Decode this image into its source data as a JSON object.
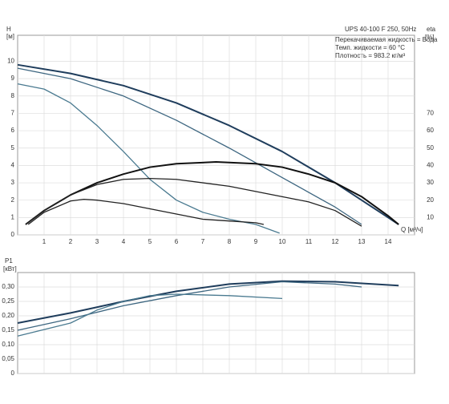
{
  "chart_data": [
    {
      "type": "line",
      "title": "UPS 40-100 F 250, 50Hz",
      "annotations": [
        "Перекачиваемая жидкость = Вода",
        "Темп. жидкости = 60 °C",
        "Плотность = 983.2 кг/м³"
      ],
      "ylabel": "H",
      "yunit": "[м]",
      "y2label": "eta",
      "y2unit": "[%]",
      "xlabel": "Q [м³/ч]",
      "xlim": [
        0,
        15
      ],
      "xticks": [
        1,
        2,
        3,
        4,
        5,
        6,
        7,
        8,
        9,
        10,
        11,
        12,
        13,
        14
      ],
      "ylim": [
        0,
        11.5
      ],
      "yticks": [
        0,
        1,
        2,
        3,
        4,
        5,
        6,
        7,
        8,
        9,
        10
      ],
      "y2lim": [
        0,
        115
      ],
      "y2ticks": [
        10,
        20,
        30,
        40,
        50,
        60,
        70
      ],
      "grid": true,
      "series": [
        {
          "color": "#1f3d5c",
          "width": 2,
          "x": [
            0,
            2,
            4,
            6,
            8,
            10,
            12,
            13,
            14,
            14.4
          ],
          "values": [
            9.8,
            9.3,
            8.6,
            7.6,
            6.3,
            4.8,
            3.0,
            2.0,
            1.0,
            0.6
          ]
        },
        {
          "color": "#3d6680",
          "width": 1.3,
          "x": [
            0,
            2,
            4,
            6,
            8,
            10,
            12,
            13
          ],
          "values": [
            9.6,
            9.0,
            8.0,
            6.6,
            5.0,
            3.3,
            1.6,
            0.6
          ]
        },
        {
          "color": "#4a7a90",
          "width": 1.3,
          "x": [
            0,
            1,
            2,
            3,
            4,
            5,
            6,
            7,
            8,
            9,
            9.9
          ],
          "values": [
            8.7,
            8.4,
            7.6,
            6.3,
            4.8,
            3.2,
            2.0,
            1.3,
            0.9,
            0.6,
            0.1
          ]
        },
        {
          "color": "#111111",
          "width": 2,
          "axis": "y2",
          "x": [
            0.3,
            1,
            2,
            3,
            4,
            5,
            6,
            7.5,
            9,
            10,
            11,
            12,
            13,
            14,
            14.4
          ],
          "values": [
            6,
            14,
            23,
            30,
            35,
            39,
            41,
            42,
            41,
            39,
            35,
            30,
            22,
            11,
            6
          ]
        },
        {
          "color": "#222222",
          "width": 1.3,
          "axis": "y2",
          "x": [
            0.3,
            1,
            2,
            3,
            4,
            5,
            6,
            8,
            10,
            11,
            12,
            13
          ],
          "values": [
            6,
            14,
            23,
            29,
            32,
            32.5,
            32,
            28,
            22,
            19,
            14,
            5
          ]
        },
        {
          "color": "#222222",
          "width": 1.3,
          "axis": "y2",
          "x": [
            0.4,
            1,
            2,
            2.5,
            3,
            4,
            5,
            6,
            7,
            8,
            9,
            9.3
          ],
          "values": [
            6,
            13,
            19.5,
            20.5,
            20,
            18,
            15,
            12,
            9,
            8,
            7,
            6
          ]
        }
      ]
    },
    {
      "type": "line",
      "ylabel": "P1",
      "yunit": "[кВт]",
      "xlim": [
        0,
        15
      ],
      "xticks": [
        1,
        2,
        3,
        4,
        5,
        6,
        7,
        8,
        9,
        10,
        11,
        12,
        13,
        14
      ],
      "ylim": [
        0,
        0.35
      ],
      "yticks": [
        0,
        {
          "value": 0.05,
          "label": "0,05"
        },
        {
          "value": 0.1,
          "label": "0,10"
        },
        {
          "value": 0.15,
          "label": "0,15"
        },
        {
          "value": 0.2,
          "label": "0,20"
        },
        {
          "value": 0.25,
          "label": "0,25"
        },
        {
          "value": 0.3,
          "label": "0,30"
        }
      ],
      "grid": true,
      "series": [
        {
          "color": "#1f3d5c",
          "width": 2,
          "x": [
            0,
            2,
            4,
            6,
            8,
            10,
            12,
            14.4
          ],
          "values": [
            0.175,
            0.21,
            0.25,
            0.285,
            0.31,
            0.32,
            0.318,
            0.305
          ]
        },
        {
          "color": "#3d6680",
          "width": 1.3,
          "x": [
            0,
            2,
            4,
            6,
            8,
            10,
            12,
            13
          ],
          "values": [
            0.15,
            0.19,
            0.235,
            0.27,
            0.3,
            0.318,
            0.31,
            0.3
          ]
        },
        {
          "color": "#4a7a90",
          "width": 1.3,
          "x": [
            0,
            2,
            3,
            4,
            5,
            6,
            8,
            10
          ],
          "values": [
            0.13,
            0.175,
            0.22,
            0.25,
            0.27,
            0.275,
            0.27,
            0.26
          ]
        }
      ]
    }
  ]
}
